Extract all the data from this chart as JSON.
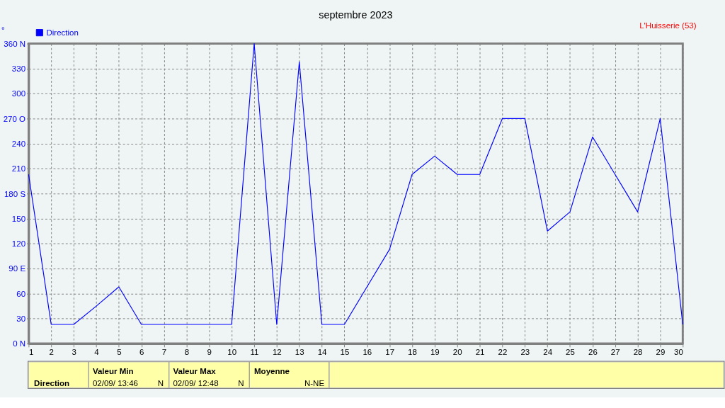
{
  "chart_data": {
    "type": "line",
    "title": "septembre 2023",
    "ylabel": "°",
    "annotations": [
      "L'Huisserie (53)",
      "Direction",
      "Valeur Min",
      "02/09/ 13:46",
      "N",
      "Valeur Max",
      "02/09/ 12:48",
      "N",
      "Moyenne",
      "N-NE"
    ],
    "x": [
      1,
      2,
      3,
      4,
      5,
      6,
      7,
      8,
      9,
      10,
      11,
      12,
      13,
      14,
      15,
      16,
      17,
      18,
      19,
      20,
      21,
      22,
      23,
      24,
      25,
      26,
      27,
      28,
      29,
      30
    ],
    "series": [
      {
        "name": "Direction",
        "color": "#0000ff",
        "values": [
          203,
          23,
          23,
          45,
          68,
          23,
          23,
          23,
          23,
          23,
          360,
          23,
          338,
          23,
          23,
          68,
          113,
          203,
          225,
          203,
          203,
          270,
          270,
          135,
          158,
          248,
          203,
          158,
          270,
          23
        ]
      }
    ],
    "xlim": [
      1,
      30
    ],
    "xticks": [
      1,
      2,
      3,
      4,
      5,
      6,
      7,
      8,
      9,
      10,
      11,
      12,
      13,
      14,
      15,
      16,
      17,
      18,
      19,
      20,
      21,
      22,
      23,
      24,
      25,
      26,
      27,
      28,
      29,
      30
    ],
    "ylim": [
      0,
      360
    ],
    "yticks": [
      {
        "value": 0,
        "label": "0  N"
      },
      30,
      60,
      {
        "value": 90,
        "label": "90  E"
      },
      120,
      150,
      {
        "value": 180,
        "label": "180 S"
      },
      210,
      240,
      {
        "value": 270,
        "label": "270 O"
      },
      300,
      330,
      {
        "value": 360,
        "label": "360 N"
      }
    ],
    "grid": true,
    "legend": "top left",
    "marker": "none",
    "line_style": "solid"
  }
}
